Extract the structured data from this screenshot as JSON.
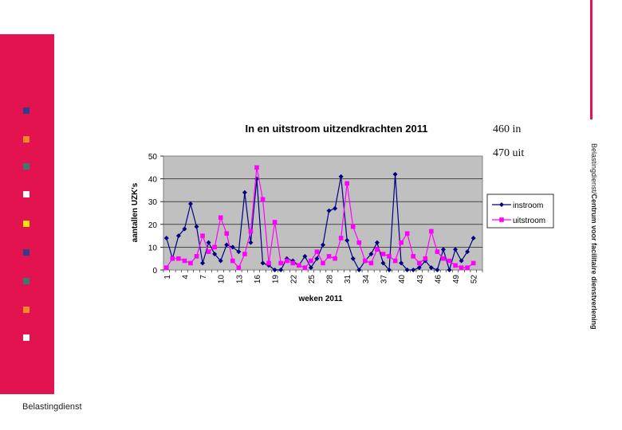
{
  "sidebar": {
    "bullets": [
      {
        "color": "#2e3f8f"
      },
      {
        "color": "#f08a24"
      },
      {
        "color": "#2f7f6f"
      },
      {
        "color": "#ffffff"
      },
      {
        "color": "#f5e200"
      },
      {
        "color": "#2e3f8f"
      },
      {
        "color": "#2f7f6f"
      },
      {
        "color": "#f08a24"
      },
      {
        "color": "#ffffff"
      }
    ]
  },
  "stats": {
    "in": "460 in",
    "uit": "470 uit"
  },
  "brand": "Belastingdienst",
  "vertical_brand": {
    "prefix": "Belastingdienst/",
    "bold": "Centrum voor facilitaire dienstverlening"
  },
  "chart_data": {
    "type": "line",
    "title": "In en uitstroom uitzendkrachten 2011",
    "xlabel": "weken 2011",
    "ylabel": "aantallen UZK's",
    "ylim": [
      0,
      50
    ],
    "yticks": [
      0,
      10,
      20,
      30,
      40,
      50
    ],
    "xtick_labels": [
      "1",
      "4",
      "7",
      "10",
      "13",
      "16",
      "19",
      "22",
      "25",
      "28",
      "31",
      "34",
      "37",
      "40",
      "43",
      "46",
      "49",
      "52"
    ],
    "x": [
      1,
      2,
      3,
      4,
      5,
      6,
      7,
      8,
      9,
      10,
      11,
      12,
      13,
      14,
      15,
      16,
      17,
      18,
      19,
      20,
      21,
      22,
      23,
      24,
      25,
      26,
      27,
      28,
      29,
      30,
      31,
      32,
      33,
      34,
      35,
      36,
      37,
      38,
      39,
      40,
      41,
      42,
      43,
      44,
      45,
      46,
      47,
      48,
      49,
      50,
      51,
      52,
      53
    ],
    "grid": true,
    "plot_background": "#c0c0c0",
    "legend": "right",
    "series": [
      {
        "name": "instroom",
        "color": "#000080",
        "marker": "diamond",
        "values": [
          14,
          5,
          15,
          18,
          29,
          19,
          3,
          12,
          7,
          4,
          11,
          10,
          8,
          34,
          12,
          40,
          3,
          2,
          0,
          0,
          5,
          4,
          2,
          6,
          1,
          5,
          11,
          26,
          27,
          41,
          13,
          5,
          0,
          4,
          7,
          12,
          3,
          0,
          42,
          3,
          0,
          0,
          1,
          4,
          1,
          0,
          9,
          0,
          9,
          4,
          8,
          14,
          null
        ]
      },
      {
        "name": "uitstroom",
        "color": "#ff00ff",
        "marker": "square",
        "values": [
          1,
          5,
          5,
          4,
          3,
          6,
          15,
          8,
          10,
          23,
          16,
          4,
          1,
          7,
          17,
          45,
          31,
          3,
          21,
          3,
          4,
          3,
          2,
          1,
          4,
          8,
          3,
          6,
          5,
          14,
          38,
          19,
          12,
          4,
          3,
          9,
          7,
          6,
          4,
          12,
          16,
          6,
          3,
          5,
          17,
          8,
          5,
          4,
          2,
          1,
          1,
          3,
          null
        ]
      }
    ]
  }
}
